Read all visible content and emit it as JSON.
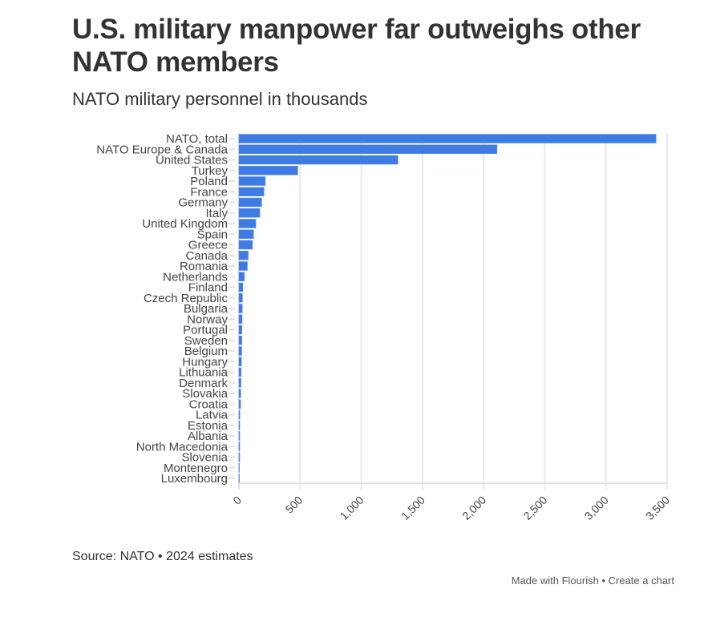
{
  "header": {
    "title": "U.S. military manpower far outweighs other NATO members",
    "subtitle": "NATO military personnel in thousands"
  },
  "footer": {
    "source": "Source: NATO • 2024 estimates",
    "made_with": "Made with Flourish",
    "separator": " • ",
    "create_chart": "Create a chart"
  },
  "colors": {
    "bar": "#3f7be4",
    "text": "#333333",
    "gridline": "#e9e9e9"
  },
  "chart_data": {
    "type": "bar",
    "orientation": "horizontal",
    "title": "U.S. military manpower far outweighs other NATO members",
    "subtitle": "NATO military personnel in thousands",
    "xlabel": "",
    "ylabel": "",
    "xlim": [
      0,
      3500
    ],
    "x_ticks": [
      0,
      500,
      1000,
      1500,
      2000,
      2500,
      3000,
      3500
    ],
    "x_tick_labels": [
      "0",
      "500",
      "1,000",
      "1,500",
      "2,000",
      "2,500",
      "3,000",
      "3,500"
    ],
    "grid": true,
    "legend": "none",
    "categories": [
      "NATO, total",
      "NATO Europe & Canada",
      "United States",
      "Turkey",
      "Poland",
      "France",
      "Germany",
      "Italy",
      "United Kingdom",
      "Spain",
      "Greece",
      "Canada",
      "Romania",
      "Netherlands",
      "Finland",
      "Czech Republic",
      "Bulgaria",
      "Norway",
      "Portugal",
      "Sweden",
      "Belgium",
      "Hungary",
      "Lithuania",
      "Denmark",
      "Slovakia",
      "Croatia",
      "Latvia",
      "Estonia",
      "Albania",
      "North Macedonia",
      "Slovenia",
      "Montenegro",
      "Luxembourg"
    ],
    "series": [
      {
        "name": "Military personnel (thousands)",
        "values": [
          3410,
          2110,
          1300,
          481,
          216,
          205,
          186,
          171,
          138,
          119,
          111,
          76,
          69,
          45,
          32,
          29,
          28,
          26,
          25,
          24,
          23,
          21,
          18,
          17,
          15,
          14,
          8,
          7,
          7,
          7,
          7,
          2,
          1
        ]
      }
    ],
    "source": "Source: NATO • 2024 estimates"
  }
}
